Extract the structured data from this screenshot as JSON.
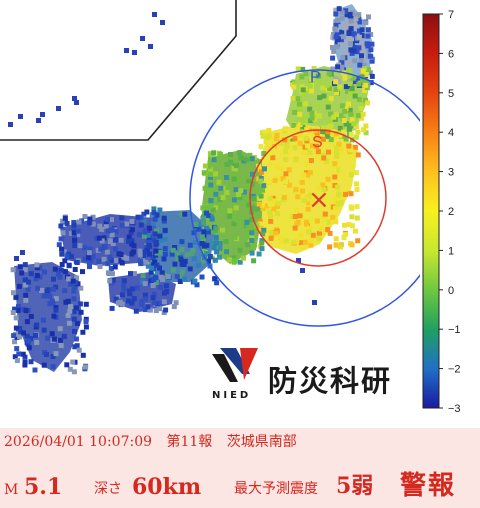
{
  "map": {
    "epicenter_mark": "×",
    "ring_labels": [
      "P",
      "S"
    ],
    "regions": [
      "sea-areas",
      "hokkaido",
      "honshu",
      "shikoku",
      "kyushu",
      "nansei-islands"
    ]
  },
  "scale": {
    "ticks": [
      "7",
      "6",
      "5",
      "4",
      "3",
      "2",
      "1",
      "0",
      "−1",
      "−2",
      "−3"
    ],
    "colors": [
      "#8a1010",
      "#c81c10",
      "#e44410",
      "#f88014",
      "#ffc020",
      "#f8f020",
      "#c8e830",
      "#70c840",
      "#20a060",
      "#2070c8",
      "#1a1aa0"
    ]
  },
  "logo": {
    "ja": "防災科研",
    "en": "NIED"
  },
  "info": {
    "datetime": "2026/04/01 10:07:09",
    "report": "第11報",
    "region": "茨城県南部",
    "magnitude_label": "M",
    "magnitude": "5.1",
    "depth_label": "深さ",
    "depth": "60km",
    "intensity_label": "最大予測震度",
    "intensity": "5弱",
    "alert": "警報",
    "text_color": "#d5281e",
    "bg_color": "#fce6e4"
  }
}
